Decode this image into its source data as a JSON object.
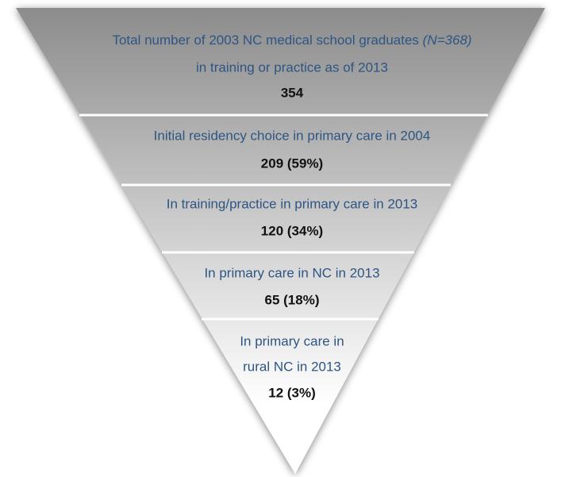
{
  "stages": [
    {
      "lines": [
        "Total number of 2003 NC medical school graduates",
        "in training or practice as of 2013"
      ],
      "note": "(N=368)",
      "value": "354"
    },
    {
      "lines": [
        "Initial residency choice in primary care in 2004"
      ],
      "value": "209 (59%)"
    },
    {
      "lines": [
        "In training/practice in primary care in 2013"
      ],
      "value": "120 (34%)"
    },
    {
      "lines": [
        "In primary care in NC in 2013"
      ],
      "value": "65 (18%)"
    },
    {
      "lines": [
        "In primary care in",
        "rural NC in 2013"
      ],
      "value": "12 (3%)"
    }
  ]
}
